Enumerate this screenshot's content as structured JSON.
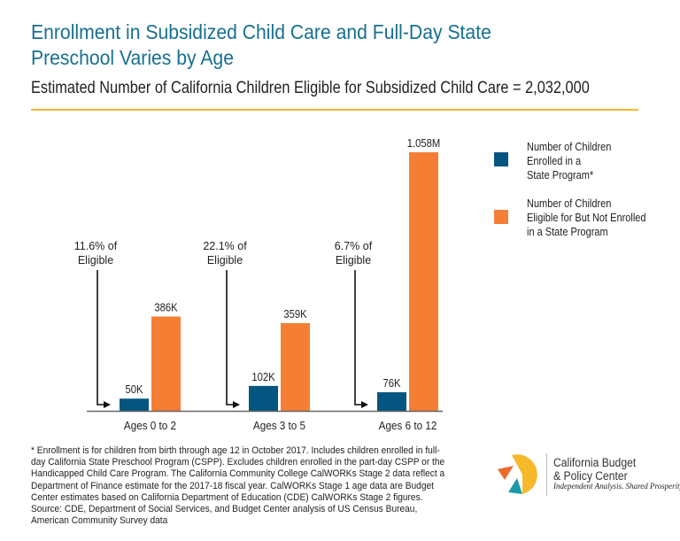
{
  "header": {
    "title_line1": "Enrollment in Subsidized Child Care and Full-Day State",
    "title_line2": "Preschool Varies by Age",
    "subtitle": "Estimated Number of California Children Eligible for Subsidized Child Care = 2,032,000"
  },
  "colors": {
    "enrolled": "#04557f",
    "not_enrolled": "#f47f34",
    "title": "#17708f",
    "rule": "#f6b92b"
  },
  "chart_data": {
    "type": "bar",
    "title": "Enrollment in Subsidized Child Care and Full-Day State Preschool Varies by Age",
    "subtitle": "Estimated Number of California Children Eligible for Subsidized Child Care = 2,032,000",
    "categories": [
      "Ages 0 to 2",
      "Ages 3 to 5",
      "Ages 6 to 12"
    ],
    "series": [
      {
        "name": "Number of Children Enrolled in a State Program*",
        "values": [
          50000,
          102000,
          76000
        ],
        "labels": [
          "50K",
          "102K",
          "76K"
        ]
      },
      {
        "name": "Number of Children Eligible for But Not Enrolled in a State Program",
        "values": [
          386000,
          359000,
          1058000
        ],
        "labels": [
          "386K",
          "359K",
          "1.058M"
        ]
      }
    ],
    "annotations": [
      {
        "line1": "11.6% of",
        "line2": "Eligible"
      },
      {
        "line1": "22.1% of",
        "line2": "Eligible"
      },
      {
        "line1": "6.7% of",
        "line2": "Eligible"
      }
    ],
    "ylim": [
      0,
      1100000
    ],
    "grid": false,
    "y_axis_shown": false,
    "legend_placement": "right"
  },
  "legend": [
    {
      "label": "Number of Children\nEnrolled in a\nState Program*"
    },
    {
      "label": "Number of Children\nEligible for But Not Enrolled\nin a State Program"
    }
  ],
  "notes": {
    "footnote": "* Enrollment is for children from birth through age 12 in October 2017. Includes children enrolled in full-day California State Preschool Program (CSPP). Excludes children enrolled in the part-day CSPP or the Handicapped Child Care Program. The California Community College CalWORKs Stage 2 data reflect a Department of Finance estimate for the 2017-18 fiscal year. CalWORKs Stage 1 age data are Budget Center estimates based on California Department of Education (CDE) CalWORKs Stage 2 figures.",
    "source": "Source: CDE, Department of Social Services, and Budget Center analysis of US Census Bureau, American Community Survey data"
  },
  "logo": {
    "name": "California Budget\n& Policy Center",
    "tagline": "Independent Analysis. Shared Prosperity."
  }
}
